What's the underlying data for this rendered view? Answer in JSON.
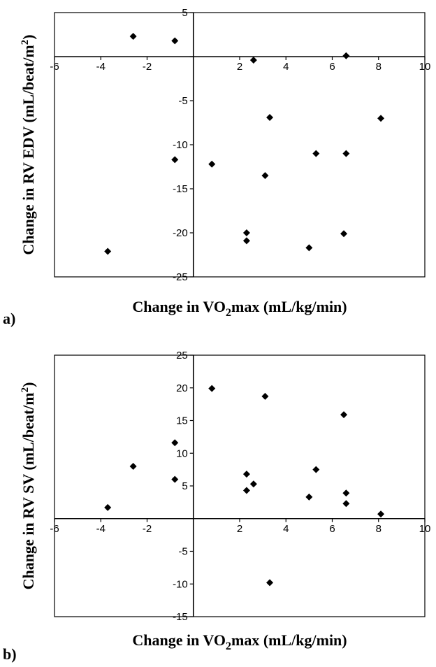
{
  "chart_data": [
    {
      "type": "scatter",
      "panel_label": "a)",
      "xlabel_pre": "Change in VO",
      "xlabel_sub": "2",
      "xlabel_post": "max (mL/kg/min)",
      "ylabel_pre": "Change in RV EDV (mL/beat/m",
      "ylabel_sup": "2",
      "ylabel_post": ")",
      "xlim": [
        -6,
        10
      ],
      "ylim": [
        -25,
        5
      ],
      "xticks": [
        -6,
        -4,
        -2,
        0,
        2,
        4,
        6,
        8,
        10
      ],
      "xtick_labels": [
        "-6",
        "-4",
        "-2",
        "",
        "2",
        "4",
        "6",
        "8",
        "10"
      ],
      "yticks": [
        5,
        0,
        -5,
        -10,
        -15,
        -20,
        -25
      ],
      "ytick_labels": [
        "5",
        "",
        "-5",
        "-10",
        "-15",
        "-20",
        "-25"
      ],
      "grid": false,
      "points": [
        [
          -2.6,
          2.3
        ],
        [
          -0.8,
          1.8
        ],
        [
          2.6,
          -0.4
        ],
        [
          6.6,
          0.1
        ],
        [
          3.3,
          -6.9
        ],
        [
          8.1,
          -7.0
        ],
        [
          5.3,
          -11.0
        ],
        [
          6.6,
          -11.0
        ],
        [
          -0.8,
          -11.7
        ],
        [
          0.8,
          -12.2
        ],
        [
          3.1,
          -13.5
        ],
        [
          2.3,
          -20.0
        ],
        [
          6.5,
          -20.1
        ],
        [
          2.3,
          -20.9
        ],
        [
          5.0,
          -21.7
        ],
        [
          -3.7,
          -22.1
        ]
      ]
    },
    {
      "type": "scatter",
      "panel_label": "b)",
      "xlabel_pre": "Change in VO",
      "xlabel_sub": "2",
      "xlabel_post": "max (mL/kg/min)",
      "ylabel_pre": "Change in RV SV (mL/beat/m",
      "ylabel_sup": "2",
      "ylabel_post": ")",
      "xlim": [
        -6,
        10
      ],
      "ylim": [
        -15,
        25
      ],
      "xticks": [
        -6,
        -4,
        -2,
        0,
        2,
        4,
        6,
        8,
        10
      ],
      "xtick_labels": [
        "-6",
        "-4",
        "-2",
        "",
        "2",
        "4",
        "6",
        "8",
        "10"
      ],
      "yticks": [
        25,
        20,
        15,
        10,
        5,
        0,
        -5,
        -10,
        -15
      ],
      "ytick_labels": [
        "25",
        "20",
        "15",
        "10",
        "5",
        "",
        "-5",
        "-10",
        "-15"
      ],
      "grid": false,
      "points": [
        [
          0.8,
          19.9
        ],
        [
          3.1,
          18.7
        ],
        [
          6.5,
          15.9
        ],
        [
          -0.8,
          11.6
        ],
        [
          -2.6,
          8.0
        ],
        [
          5.3,
          7.5
        ],
        [
          2.3,
          6.8
        ],
        [
          -0.8,
          6.0
        ],
        [
          2.6,
          5.3
        ],
        [
          2.3,
          4.3
        ],
        [
          6.6,
          3.9
        ],
        [
          5.0,
          3.3
        ],
        [
          6.6,
          2.3
        ],
        [
          -3.7,
          1.7
        ],
        [
          8.1,
          0.7
        ],
        [
          3.3,
          -9.8
        ]
      ]
    }
  ]
}
